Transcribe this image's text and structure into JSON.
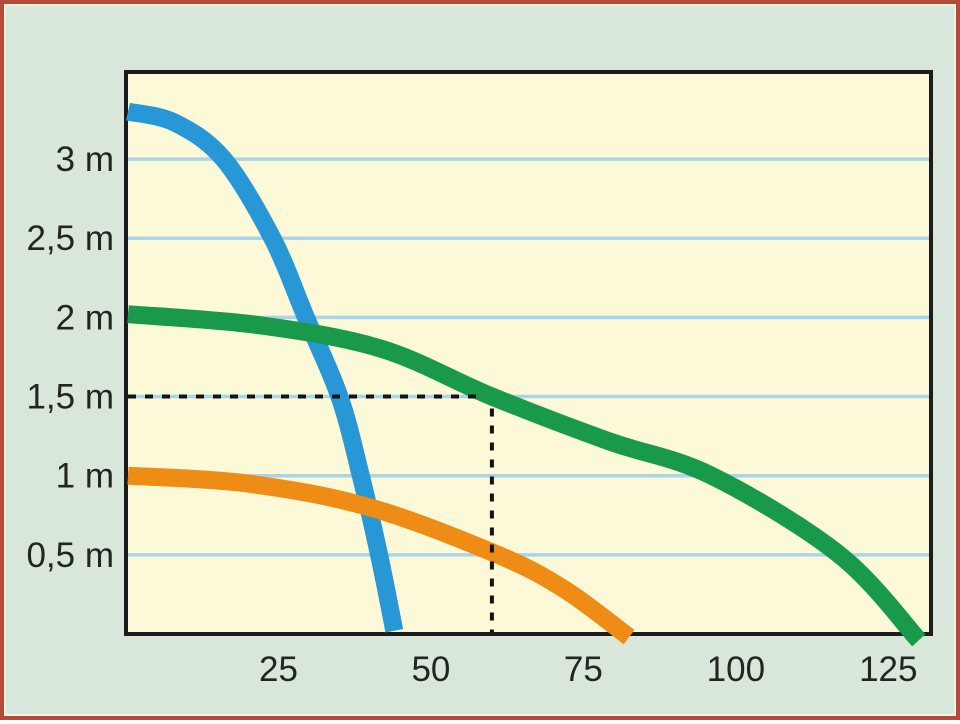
{
  "page": {
    "background": "#d9e6da",
    "frame_border_color": "#b54b38"
  },
  "colors": {
    "plot_background": "#fbf9d7",
    "plot_border": "#1c1c1c",
    "gridline": "#a9d4ec",
    "tick_label": "#222520",
    "guide_line": "#141414",
    "curve_blue": "#2897d6",
    "curve_green": "#189a4a",
    "curve_orange": "#ee8c16"
  },
  "chart_data": {
    "type": "line",
    "title": "",
    "xlabel": "",
    "ylabel": "",
    "xlim": [
      0,
      132
    ],
    "ylim": [
      0,
      3.55
    ],
    "grid": "horizontal-only",
    "legend": "none",
    "x_ticks": [
      {
        "value": 25,
        "label": "25"
      },
      {
        "value": 50,
        "label": "50"
      },
      {
        "value": 75,
        "label": "75"
      },
      {
        "value": 100,
        "label": "100"
      },
      {
        "value": 125,
        "label": "125"
      }
    ],
    "y_ticks": [
      {
        "value": 3,
        "label": "3 m"
      },
      {
        "value": 2.5,
        "label": "2,5 m"
      },
      {
        "value": 2,
        "label": "2 m"
      },
      {
        "value": 1.5,
        "label": "1,5 m"
      },
      {
        "value": 1,
        "label": "1 m"
      },
      {
        "value": 0.5,
        "label": "0,5 m"
      }
    ],
    "series": [
      {
        "name": "blue-curve",
        "color_key": "curve_blue",
        "points": [
          [
            0,
            3.3
          ],
          [
            8,
            3.23
          ],
          [
            16,
            3.0
          ],
          [
            24,
            2.5
          ],
          [
            29.5,
            2.0
          ],
          [
            35,
            1.5
          ],
          [
            38.5,
            1.0
          ],
          [
            41.5,
            0.5
          ],
          [
            44,
            0.02
          ]
        ]
      },
      {
        "name": "green-curve",
        "color_key": "curve_green",
        "points": [
          [
            0,
            2.02
          ],
          [
            22,
            1.95
          ],
          [
            42,
            1.8
          ],
          [
            60,
            1.5
          ],
          [
            79,
            1.22
          ],
          [
            96,
            1.0
          ],
          [
            117,
            0.5
          ],
          [
            130,
            -0.04
          ]
        ]
      },
      {
        "name": "orange-curve",
        "color_key": "curve_orange",
        "points": [
          [
            0,
            1.0
          ],
          [
            20,
            0.95
          ],
          [
            40,
            0.8
          ],
          [
            61,
            0.5
          ],
          [
            72,
            0.28
          ],
          [
            82.5,
            -0.02
          ]
        ]
      }
    ],
    "guide": {
      "head_level": 1.5,
      "flow_value": 60,
      "style": "dashed",
      "dash": [
        8,
        9
      ]
    }
  }
}
